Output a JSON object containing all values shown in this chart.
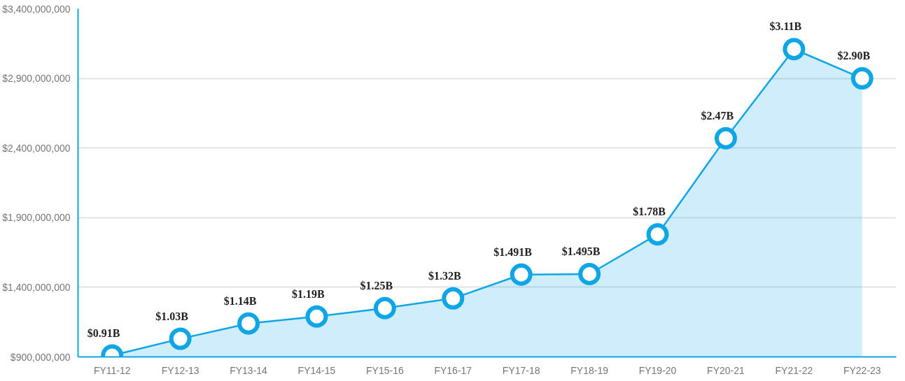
{
  "chart_data": {
    "type": "area",
    "categories": [
      "FY11-12",
      "FY12-13",
      "FY13-14",
      "FY14-15",
      "FY15-16",
      "FY16-17",
      "FY17-18",
      "FY18-19",
      "FY19-20",
      "FY20-21",
      "FY21-22",
      "FY22-23"
    ],
    "series": [
      {
        "color": "#0fa6e6",
        "values": [
          910000000,
          1030000000,
          1140000000,
          1190000000,
          1250000000,
          1320000000,
          1491000000,
          1495000000,
          1780000000,
          2470000000,
          3110000000,
          2900000000
        ],
        "value_labels": [
          "$0.91B",
          "$1.03B",
          "$1.14B",
          "$1.19B",
          "$1.25B",
          "$1.32B",
          "$1.491B",
          "$1.495B",
          "$1.78B",
          "$2.47B",
          "$3.11B",
          "$2.90B"
        ]
      }
    ],
    "ylim": [
      900000000,
      3400000000
    ],
    "yticks": [
      {
        "value": 900000000,
        "label": "$900,000,000"
      },
      {
        "value": 1400000000,
        "label": "$1,400,000,000"
      },
      {
        "value": 1900000000,
        "label": "$1,900,000,000"
      },
      {
        "value": 2400000000,
        "label": "$2,400,000,000"
      },
      {
        "value": 2900000000,
        "label": "$2,900,000,000"
      },
      {
        "value": 3400000000,
        "label": "$3,400,000,000"
      }
    ],
    "grid": "y",
    "marker": "circle",
    "line_style": "solid"
  }
}
